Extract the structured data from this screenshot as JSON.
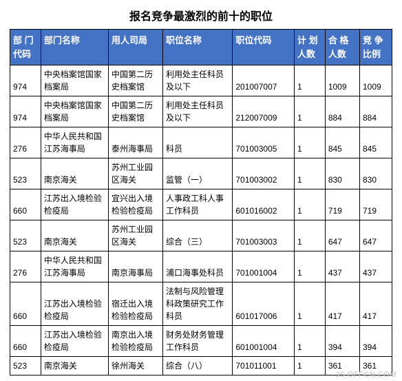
{
  "title": "报名竞争最激烈的前十的职位",
  "watermark": "JS.OFFCN.COM",
  "table": {
    "columns": [
      {
        "label": "部 门代码",
        "class": "col-dept-code"
      },
      {
        "label": "部门名称",
        "class": "col-dept-name"
      },
      {
        "label": "用人司局",
        "class": "col-bureau"
      },
      {
        "label": "职位名称",
        "class": "col-position"
      },
      {
        "label": "职位代码",
        "class": "col-position-code"
      },
      {
        "label": "计 划人数",
        "class": "col-plan"
      },
      {
        "label": "合 格人数",
        "class": "col-qualified"
      },
      {
        "label": "竞 争比例",
        "class": "col-ratio"
      }
    ],
    "rows": [
      {
        "dept_code": "974",
        "dept_name": "中央档案馆国家档案局",
        "bureau": "中国第二历史档案馆",
        "position": "利用处主任科员及以下",
        "position_code": "201007007",
        "plan": "1",
        "qualified": "1009",
        "ratio": "1009"
      },
      {
        "dept_code": "974",
        "dept_name": "中央档案馆国家档案局",
        "bureau": "中国第二历史档案馆",
        "position": "利用处主任科员及以下",
        "position_code": "212007009",
        "plan": "1",
        "qualified": "884",
        "ratio": "884"
      },
      {
        "dept_code": "276",
        "dept_name": "中华人民共和国江苏海事局",
        "bureau": "泰州海事局",
        "position": "科员",
        "position_code": "701003005",
        "plan": "1",
        "qualified": "845",
        "ratio": "845"
      },
      {
        "dept_code": "523",
        "dept_name": "南京海关",
        "bureau": "苏州工业园区海关",
        "position": "监管（一）",
        "position_code": "701003002",
        "plan": "1",
        "qualified": "830",
        "ratio": "830"
      },
      {
        "dept_code": "660",
        "dept_name": "江苏出入境检验检疫局",
        "bureau": "宜兴出入境检验检疫局",
        "position": "人事政工科人事工作科员",
        "position_code": "601016002",
        "plan": "1",
        "qualified": "719",
        "ratio": "719"
      },
      {
        "dept_code": "523",
        "dept_name": "南京海关",
        "bureau": "苏州工业园区海关",
        "position": "综合（三）",
        "position_code": "701003003",
        "plan": "1",
        "qualified": "647",
        "ratio": "647"
      },
      {
        "dept_code": "276",
        "dept_name": "中华人民共和国江苏海事局",
        "bureau": "南京海事局",
        "position": "浦口海事处科员",
        "position_code": "701001004",
        "plan": "1",
        "qualified": "437",
        "ratio": "437"
      },
      {
        "dept_code": "660",
        "dept_name": "江苏出入境检验检疫局",
        "bureau": "宿迁出入境检验检疫局",
        "position": "法制与风险管理科政策研究工作科员",
        "position_code": "601017006",
        "plan": "1",
        "qualified": "417",
        "ratio": "417"
      },
      {
        "dept_code": "660",
        "dept_name": "江苏出入境检验检疫局",
        "bureau": "南京出入境检验检疫局",
        "position": "财务处财务管理工作科员",
        "position_code": "601001004",
        "plan": "1",
        "qualified": "394",
        "ratio": "394"
      },
      {
        "dept_code": "523",
        "dept_name": "南京海关",
        "bureau": "徐州海关",
        "position": "综合（八）",
        "position_code": "701011001",
        "plan": "1",
        "qualified": "361",
        "ratio": "361"
      }
    ]
  },
  "styling": {
    "header_bg": "#4472c4",
    "header_color": "#ffffff",
    "border_color": "#000000",
    "text_color": "#000000",
    "watermark_color": "#c0c0c0",
    "title_fontsize": 16,
    "header_fontsize": 13,
    "cell_fontsize": 12
  }
}
